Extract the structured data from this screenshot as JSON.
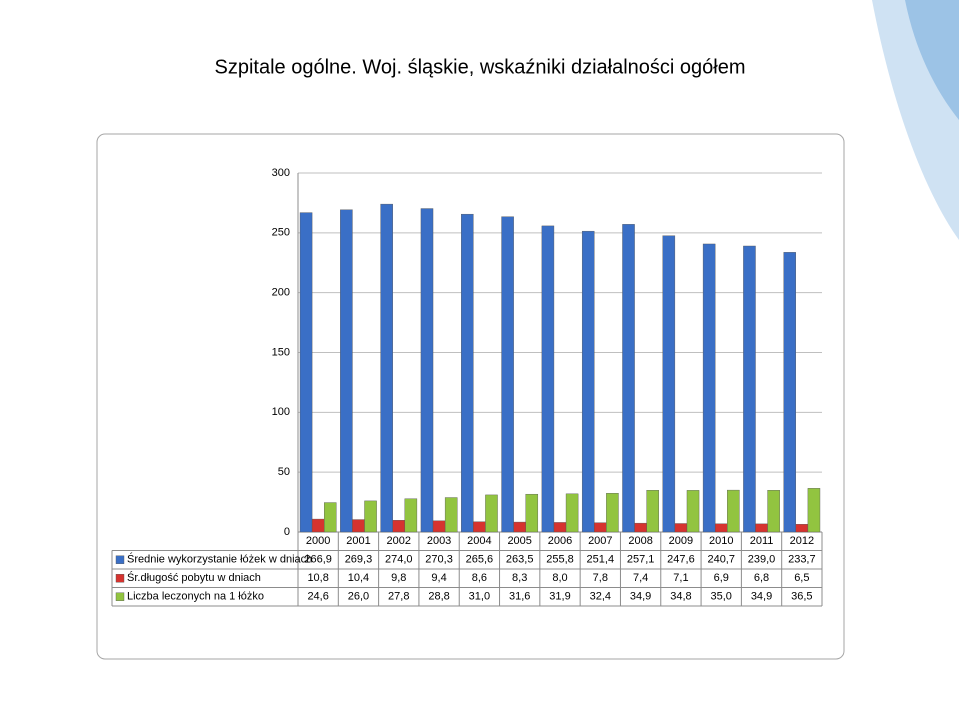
{
  "chart_data": {
    "type": "bar",
    "title": "Szpitale ogólne. Woj. śląskie, wskaźniki działalności ogółem",
    "categories": [
      "2000",
      "2001",
      "2002",
      "2003",
      "2004",
      "2005",
      "2006",
      "2007",
      "2008",
      "2009",
      "2010",
      "2011",
      "2012"
    ],
    "series": [
      {
        "name": "Średnie wykorzystanie łóżek w dniach",
        "color": "#3a6fc6",
        "values": [
          266.9,
          269.3,
          274.0,
          270.3,
          265.6,
          263.5,
          255.8,
          251.4,
          257.1,
          247.6,
          240.7,
          239.0,
          233.7
        ],
        "value_labels": [
          "266,9",
          "269,3",
          "274,0",
          "270,3",
          "265,6",
          "263,5",
          "255,8",
          "251,4",
          "257,1",
          "247,6",
          "240,7",
          "239,0",
          "233,7"
        ]
      },
      {
        "name": "Śr.długość pobytu w dniach",
        "color": "#d6332f",
        "values": [
          10.8,
          10.4,
          9.8,
          9.4,
          8.6,
          8.3,
          8.0,
          7.8,
          7.4,
          7.1,
          6.9,
          6.8,
          6.5
        ],
        "value_labels": [
          "10,8",
          "10,4",
          "9,8",
          "9,4",
          "8,6",
          "8,3",
          "8,0",
          "7,8",
          "7,4",
          "7,1",
          "6,9",
          "6,8",
          "6,5"
        ]
      },
      {
        "name": "Liczba leczonych na 1 łóżko",
        "color": "#92c440",
        "values": [
          24.6,
          26.0,
          27.8,
          28.8,
          31.0,
          31.6,
          31.9,
          32.4,
          34.9,
          34.8,
          35.0,
          34.9,
          36.5
        ],
        "value_labels": [
          "24,6",
          "26,0",
          "27,8",
          "28,8",
          "31,0",
          "31,6",
          "31,9",
          "32,4",
          "34,9",
          "34,8",
          "35,0",
          "34,9",
          "36,5"
        ]
      }
    ],
    "ylim": [
      0,
      300
    ],
    "yticks": [
      0,
      50,
      100,
      150,
      200,
      250,
      300
    ],
    "grid": true
  }
}
